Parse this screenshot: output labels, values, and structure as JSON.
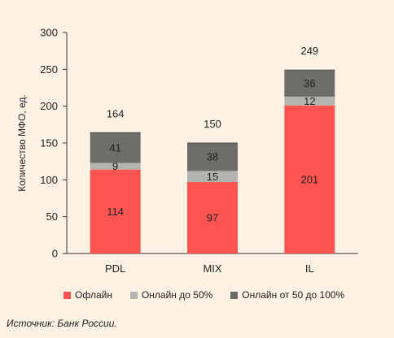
{
  "chart_data": {
    "type": "bar",
    "stacked": true,
    "categories": [
      "PDL",
      "MIX",
      "IL"
    ],
    "series": [
      {
        "name": "Офлайн",
        "color": "#fe5451",
        "values": [
          114,
          97,
          201
        ]
      },
      {
        "name": "Онлайн до 50%",
        "color": "#b5b3ae",
        "values": [
          9,
          15,
          12
        ]
      },
      {
        "name": "Онлайн от 50 до 100%",
        "color": "#6e6d69",
        "values": [
          41,
          38,
          36
        ]
      }
    ],
    "totals": [
      164,
      150,
      249
    ],
    "ylabel": "Количество МФО, ед.",
    "ylim": [
      0,
      300
    ],
    "yticks": [
      0,
      50,
      100,
      150,
      200,
      250,
      300
    ],
    "grid": false,
    "legend_position": "bottom"
  },
  "source": "Источник: Банк России."
}
